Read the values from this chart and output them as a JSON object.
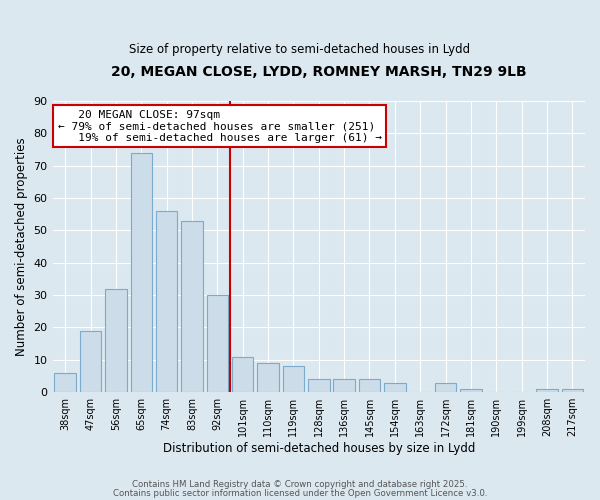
{
  "title1": "20, MEGAN CLOSE, LYDD, ROMNEY MARSH, TN29 9LB",
  "title2": "Size of property relative to semi-detached houses in Lydd",
  "xlabel": "Distribution of semi-detached houses by size in Lydd",
  "ylabel": "Number of semi-detached properties",
  "categories": [
    "38sqm",
    "47sqm",
    "56sqm",
    "65sqm",
    "74sqm",
    "83sqm",
    "92sqm",
    "101sqm",
    "110sqm",
    "119sqm",
    "128sqm",
    "136sqm",
    "145sqm",
    "154sqm",
    "163sqm",
    "172sqm",
    "181sqm",
    "190sqm",
    "199sqm",
    "208sqm",
    "217sqm"
  ],
  "values": [
    6,
    19,
    32,
    74,
    56,
    53,
    30,
    11,
    9,
    8,
    4,
    4,
    4,
    3,
    0,
    3,
    1,
    0,
    0,
    1,
    1
  ],
  "bar_color": "#ccdce8",
  "bar_edge_color": "#7aabcc",
  "ylim": [
    0,
    90
  ],
  "yticks": [
    0,
    10,
    20,
    30,
    40,
    50,
    60,
    70,
    80,
    90
  ],
  "vline_index": 6.5,
  "marker_label": "20 MEGAN CLOSE: 97sqm",
  "smaller_pct": "79%",
  "smaller_n": 251,
  "larger_pct": "19%",
  "larger_n": 61,
  "vline_color": "#cc0000",
  "ann_edge_color": "#cc0000",
  "footer1": "Contains HM Land Registry data © Crown copyright and database right 2025.",
  "footer2": "Contains public sector information licensed under the Open Government Licence v3.0.",
  "bg_color": "#dce8f0",
  "plot_bg_color": "#dce8f0"
}
